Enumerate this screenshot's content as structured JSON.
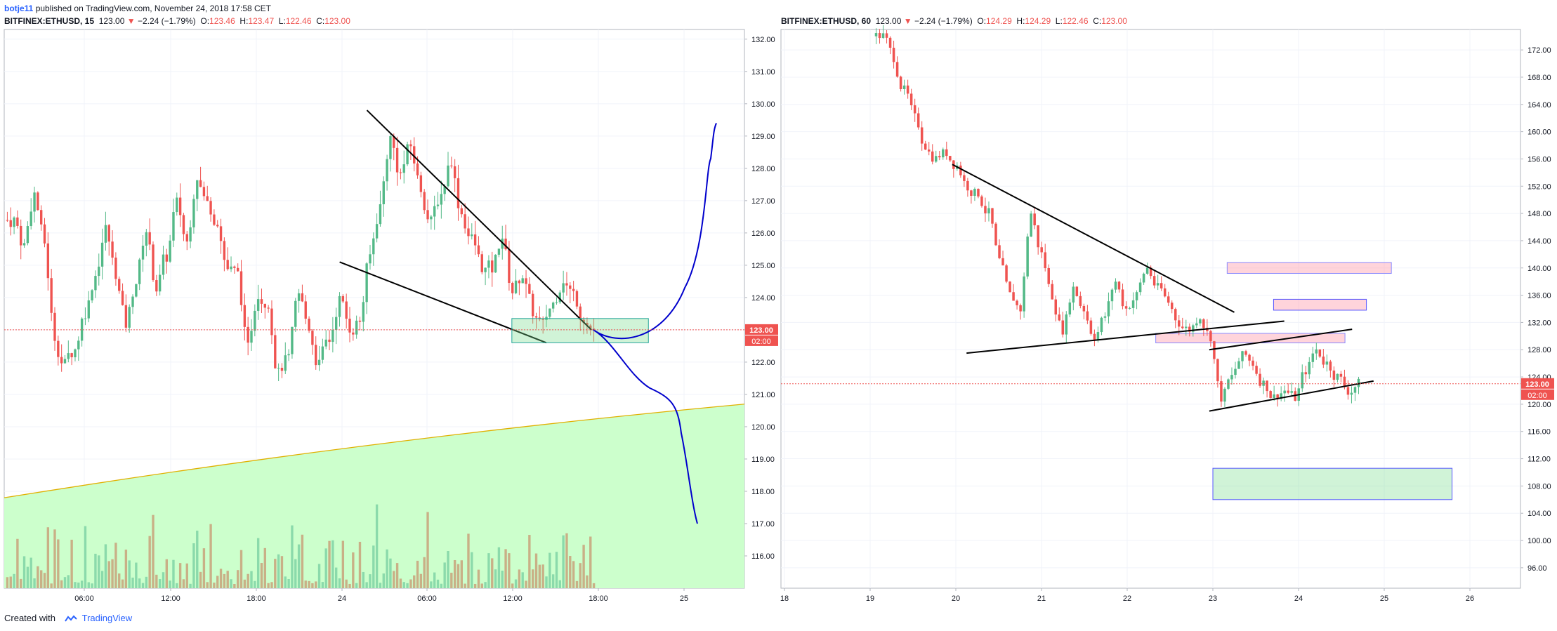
{
  "publish_line": {
    "author": "botje11",
    "rest": " published on TradingView.com, November 24, 2018 17:58 CET"
  },
  "panels": [
    {
      "symbol": "BITFINEX:ETHUSD, 15",
      "price": "123.00",
      "arrow": "▼",
      "change": "−2.24 (−1.79%)",
      "o_label": "O:",
      "o": "123.46",
      "h_label": "H:",
      "h": "123.47",
      "l_label": "L:",
      "l": "122.46",
      "c_label": "C:",
      "c": "123.00",
      "badge_price": "123.00",
      "badge_timer": "02:00"
    },
    {
      "symbol": "BITFINEX:ETHUSD, 60",
      "price": "123.00",
      "arrow": "▼",
      "change": "−2.24 (−1.79%)",
      "o_label": "O:",
      "o": "124.29",
      "h_label": "H:",
      "h": "124.29",
      "l_label": "L:",
      "l": "122.46",
      "c_label": "C:",
      "c": "123.00",
      "badge_price": "123.00",
      "badge_timer": "02:00"
    }
  ],
  "footer": {
    "created": "Created with",
    "brand": "TradingView"
  },
  "colors": {
    "up": "#26a69a",
    "up_fill": "#53b987",
    "down": "#ef5350",
    "vol_up": "#7fd4a4",
    "vol_down": "#c8a27a",
    "line": "#000000",
    "projection": "#0000cc",
    "ma_area": "#ccffcc",
    "ma_line": "#e0b000",
    "grid": "#f0f3fa",
    "price_line": "#ef5350",
    "badge": "#ef5350"
  },
  "chart_data": [
    {
      "type": "candlestick",
      "interval": "15",
      "x_ticks": [
        "06:00",
        "12:00",
        "18:00",
        "24",
        "06:00",
        "12:00",
        "18:00",
        "25"
      ],
      "y_ticks": [
        "116.00",
        "117.00",
        "118.00",
        "119.00",
        "120.00",
        "121.00",
        "122.00",
        "123.00",
        "124.00",
        "125.00",
        "126.00",
        "127.00",
        "128.00",
        "129.00",
        "130.00",
        "131.00",
        "132.00"
      ],
      "ylim": [
        115,
        132.3
      ],
      "last_price": 123.0,
      "close_path": [
        126.4,
        125.6,
        127.2,
        125.7,
        122.8,
        121.9,
        122.4,
        123.6,
        124.7,
        126.1,
        124.8,
        123.2,
        124.5,
        126.1,
        124.3,
        125.3,
        126.9,
        125.7,
        127.8,
        126.9,
        126.4,
        124.9,
        124.7,
        122.4,
        124.2,
        123.9,
        121.6,
        122.1,
        124.1,
        123.1,
        121.9,
        122.7,
        123.9,
        123.1,
        123.3,
        125.3,
        126.8,
        128.9,
        127.8,
        128.7,
        127.4,
        126.3,
        127.2,
        128.3,
        126.6,
        125.8,
        125.0,
        124.9,
        125.9,
        124.2,
        124.7,
        123.6,
        123.1,
        123.8,
        124.6,
        124.1,
        123.4,
        123.0
      ],
      "volume_range": [
        2,
        26
      ],
      "trendlines": [
        {
          "from": [
            "24 01:45",
            129.8
          ],
          "to": [
            "24 17:30",
            123.0
          ]
        },
        {
          "from": [
            "23 23:50",
            125.1
          ],
          "to": [
            "24 14:20",
            122.6
          ]
        }
      ],
      "zones": [
        {
          "color": "green",
          "from": "24 11:55",
          "to": "24 21:30",
          "y": [
            122.6,
            123.35
          ]
        }
      ],
      "projection_label": "",
      "moving_average": {
        "start": 117.8,
        "end": 120.7
      }
    },
    {
      "type": "candlestick",
      "interval": "60",
      "x_ticks": [
        "18",
        "19",
        "20",
        "21",
        "22",
        "23",
        "24",
        "25",
        "26"
      ],
      "y_ticks": [
        "96.00",
        "100.00",
        "104.00",
        "108.00",
        "112.00",
        "116.00",
        "120.00",
        "124.00",
        "128.00",
        "132.00",
        "136.00",
        "140.00",
        "144.00",
        "148.00",
        "152.00",
        "156.00",
        "160.00",
        "164.00",
        "168.00",
        "172.00"
      ],
      "ylim": [
        93,
        175
      ],
      "last_price": 123.0,
      "close_path": [
        174,
        171,
        166,
        162,
        158,
        156,
        157,
        155,
        152,
        151,
        148,
        141,
        136,
        134,
        148,
        142,
        136,
        131,
        137,
        134,
        130,
        133,
        138,
        134,
        136,
        140,
        137,
        135,
        132,
        131,
        133,
        130,
        121,
        124,
        127,
        126,
        123,
        121,
        122,
        121,
        125,
        128,
        126,
        124,
        122,
        123
      ],
      "trendlines": [
        {
          "from": [
            "19 23:00",
            155.2
          ],
          "to": [
            "23 06:00",
            133.5
          ]
        },
        {
          "from": [
            "20 03:00",
            127.5
          ],
          "to": [
            "23 20:00",
            132.2
          ]
        },
        {
          "from": [
            "22 23:00",
            128.0
          ],
          "to": [
            "24 15:00",
            131.0
          ]
        },
        {
          "from": [
            "22 23:00",
            119.0
          ],
          "to": [
            "24 21:00",
            123.4
          ]
        }
      ],
      "zones": [
        {
          "color": "red",
          "from": "23 04:00",
          "to": "25 02:00",
          "y": [
            139.2,
            140.8
          ]
        },
        {
          "color": "blue",
          "from": "23 17:00",
          "to": "24 19:00",
          "y": [
            133.8,
            135.4
          ]
        },
        {
          "color": "red",
          "from": "22 08:00",
          "to": "24 13:00",
          "y": [
            129.0,
            130.4
          ]
        },
        {
          "color": "green",
          "from": "23 00:00",
          "to": "25 19:00",
          "y": [
            106.0,
            110.6
          ]
        }
      ]
    }
  ]
}
